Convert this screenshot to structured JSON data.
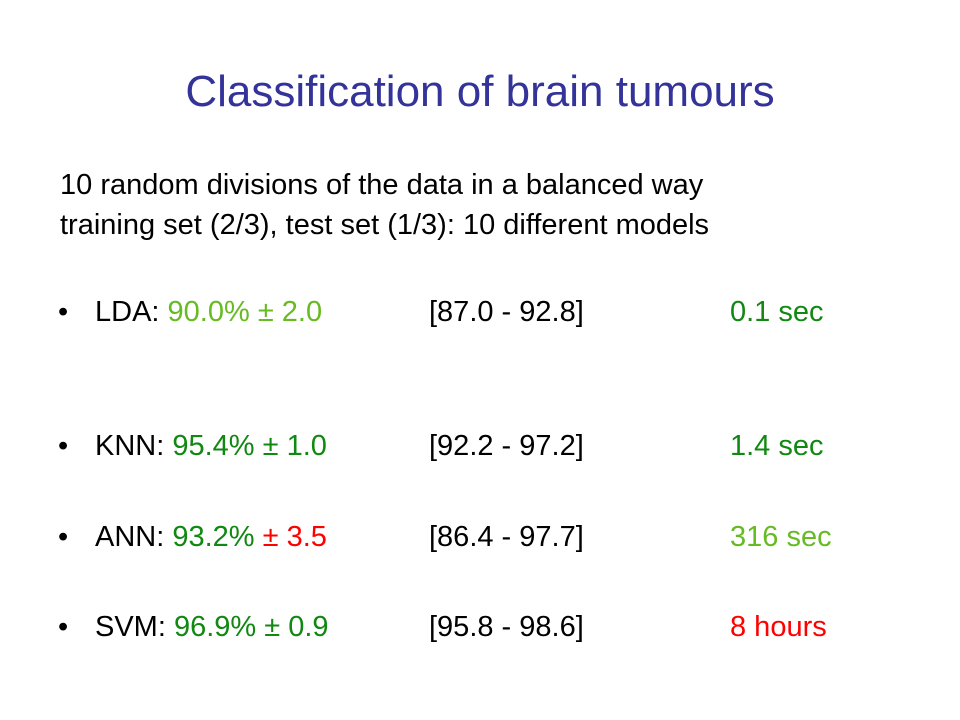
{
  "title": "Classification of brain tumours",
  "intro": [
    "10 random divisions of the data in a balanced way",
    "training set (2/3), test set (1/3): 10 different models"
  ],
  "bullet_symbol": "•",
  "colors": {
    "title": "#333399",
    "text": "#000000",
    "light_green": "#66bb22",
    "dark_green": "#118811",
    "red": "#ff0000"
  },
  "bullets": [
    {
      "method": "LDA: ",
      "accuracy": "90.0%",
      "plus_minus": " ± ",
      "std": "2.0",
      "range": "[87.0 - 92.8]",
      "time": "0.1 sec"
    },
    {
      "method": "KNN: ",
      "accuracy": "95.4%",
      "plus_minus": " ± ",
      "std": "1.0",
      "range": "[92.2 - 97.2]",
      "time": "1.4 sec"
    },
    {
      "method": "ANN: ",
      "accuracy": "93.2%",
      "plus_minus": " ± ",
      "std": "3.5",
      "range": "[86.4 - 97.7]",
      "time": "316 sec"
    },
    {
      "method": "SVM: ",
      "accuracy": "96.9%",
      "plus_minus": " ± ",
      "std": "0.9",
      "range": "[95.8 - 98.6]",
      "time": "8 hours"
    }
  ]
}
